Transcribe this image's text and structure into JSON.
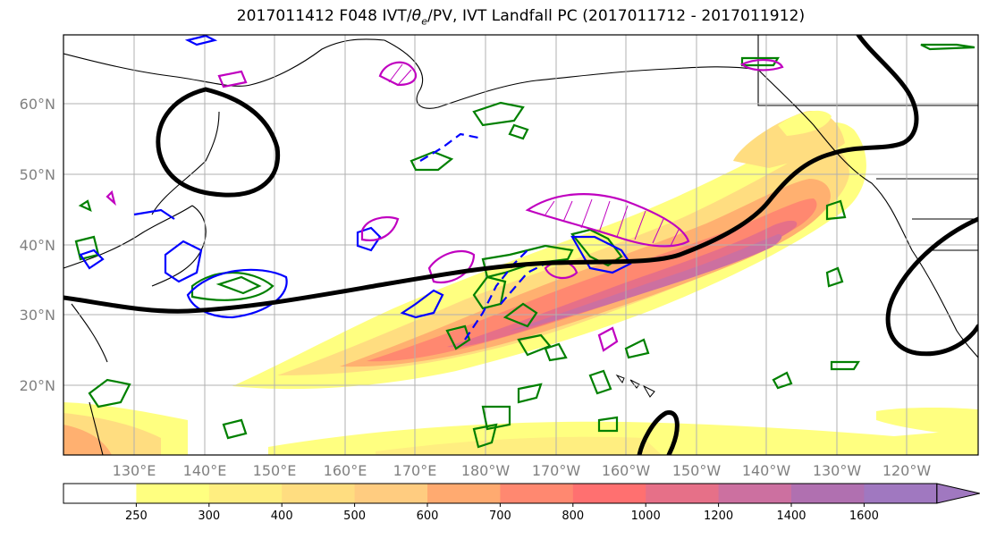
{
  "title": {
    "prefix": "2017011412 F048 IVT/",
    "theta": "θ",
    "theta_sub": "e",
    "suffix": "/PV, IVT Landfall PC (2017011712 - 2017011912)"
  },
  "map": {
    "lat_labels": [
      "60°N",
      "50°N",
      "40°N",
      "30°N",
      "20°N"
    ],
    "lon_labels": [
      "130°E",
      "140°E",
      "150°E",
      "160°E",
      "170°E",
      "180°W",
      "170°W",
      "160°W",
      "150°W",
      "140°W",
      "130°W",
      "120°W"
    ],
    "colors": {
      "ivt_core": "#e67088",
      "pv_positive": "#0000ff",
      "pv_negative": "#008000",
      "theta_e_hatch": "#c000c0",
      "landfall_contour": "#000000"
    }
  },
  "colorbar": {
    "ticks": [
      "250",
      "300",
      "400",
      "500",
      "600",
      "700",
      "800",
      "1000",
      "1200",
      "1400",
      "1600"
    ],
    "colors": [
      "#ffffff",
      "#ffff80",
      "#ffee80",
      "#ffdd80",
      "#ffcc80",
      "#ffaa70",
      "#ff8870",
      "#ff7070",
      "#e67088",
      "#cc70a0",
      "#b070b0",
      "#a078c0"
    ]
  }
}
